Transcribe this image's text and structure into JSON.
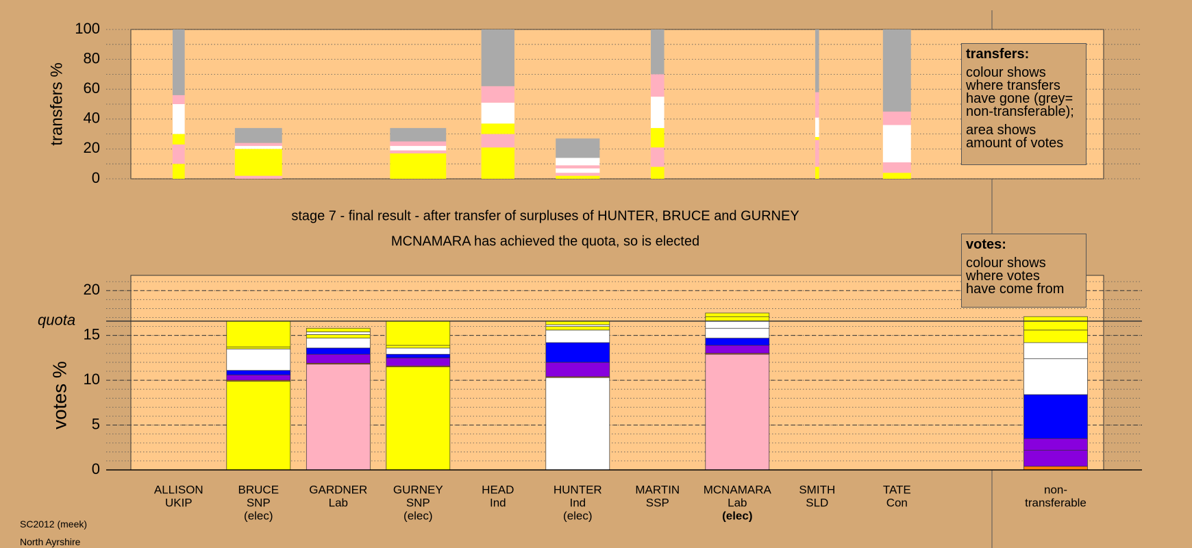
{
  "chart_data": [
    {
      "type": "stacked-bar",
      "y_label": "transfers %",
      "ylim": [
        0,
        100
      ],
      "yticks": [
        0,
        20,
        40,
        60,
        80,
        100
      ],
      "minor_tick_step": 10,
      "widths": [
        0.19,
        0.74,
        null,
        0.88,
        0.52,
        0.69,
        0.21,
        null,
        0.06,
        0.44,
        null
      ],
      "stacks": [
        [
          {
            "color": "#ffff00",
            "value": 10
          },
          {
            "color": "#ffb0c0",
            "value": 13
          },
          {
            "color": "#ffff00",
            "value": 7
          },
          {
            "color": "#ffffff",
            "value": 20
          },
          {
            "color": "#ffb0c0",
            "value": 6
          },
          {
            "color": "#aaaaaa",
            "value": 44
          }
        ],
        [
          {
            "color": "#ffb0c0",
            "value": 2
          },
          {
            "color": "#ffff00",
            "value": 18
          },
          {
            "color": "#ffffff",
            "value": 2
          },
          {
            "color": "#ffb0c0",
            "value": 2
          },
          {
            "color": "#aaaaaa",
            "value": 10
          }
        ],
        [],
        [
          {
            "color": "#ffff00",
            "value": 17
          },
          {
            "color": "#ffb0c0",
            "value": 2
          },
          {
            "color": "#ffffff",
            "value": 3
          },
          {
            "color": "#ffb0c0",
            "value": 3
          },
          {
            "color": "#aaaaaa",
            "value": 9
          }
        ],
        [
          {
            "color": "#ffff00",
            "value": 21
          },
          {
            "color": "#ffb0c0",
            "value": 9
          },
          {
            "color": "#ffff00",
            "value": 7
          },
          {
            "color": "#ffffff",
            "value": 14
          },
          {
            "color": "#ffb0c0",
            "value": 11
          },
          {
            "color": "#aaaaaa",
            "value": 38
          }
        ],
        [
          {
            "color": "#ffff00",
            "value": 2
          },
          {
            "color": "#ffb0c0",
            "value": 2
          },
          {
            "color": "#ffffff",
            "value": 3
          },
          {
            "color": "#ffb0c0",
            "value": 2
          },
          {
            "color": "#ffffff",
            "value": 5
          },
          {
            "color": "#aaaaaa",
            "value": 13
          }
        ],
        [
          {
            "color": "#ffff00",
            "value": 8
          },
          {
            "color": "#ffb0c0",
            "value": 13
          },
          {
            "color": "#ffff00",
            "value": 13
          },
          {
            "color": "#ffffff",
            "value": 21
          },
          {
            "color": "#ffb0c0",
            "value": 15
          },
          {
            "color": "#aaaaaa",
            "value": 30
          }
        ],
        [],
        [
          {
            "color": "#ffff00",
            "value": 8
          },
          {
            "color": "#ffb0c0",
            "value": 18
          },
          {
            "color": "#ffff00",
            "value": 2
          },
          {
            "color": "#ffffff",
            "value": 13
          },
          {
            "color": "#ffb0c0",
            "value": 17
          },
          {
            "color": "#aaaaaa",
            "value": 42
          }
        ],
        [
          {
            "color": "#ffff00",
            "value": 4
          },
          {
            "color": "#ffb0c0",
            "value": 7
          },
          {
            "color": "#ffffff",
            "value": 25
          },
          {
            "color": "#ffb0c0",
            "value": 9
          },
          {
            "color": "#aaaaaa",
            "value": 55
          }
        ],
        []
      ]
    },
    {
      "type": "stacked-bar",
      "title": [
        "stage 7 - final result - after transfer of surpluses of HUNTER, BRUCE and GURNEY",
        "MCNAMARA has achieved the quota, so is elected"
      ],
      "y_label": "votes %",
      "ylim": [
        0,
        21.7
      ],
      "yticks": [
        0,
        5,
        10,
        15,
        20
      ],
      "minor_tick_step": 1,
      "quota": 16.6,
      "quota_label": "quota",
      "bold_category": 7,
      "categories": [
        [
          "ALLISON",
          "UKIP"
        ],
        [
          "BRUCE",
          "SNP",
          "(elec)"
        ],
        [
          "GARDNER",
          "Lab"
        ],
        [
          "GURNEY",
          "SNP",
          "(elec)"
        ],
        [
          "HEAD",
          "Ind"
        ],
        [
          "HUNTER",
          "Ind",
          "(elec)"
        ],
        [
          "MARTIN",
          "SSP"
        ],
        [
          "MCNAMARA",
          "Lab",
          "(elec)"
        ],
        [
          "SMITH",
          "SLD"
        ],
        [
          "TATE",
          "Con"
        ],
        [
          "non-",
          "transferable"
        ]
      ],
      "stacks": [
        [],
        [
          {
            "color": "#ffff00",
            "value": 9.9
          },
          {
            "color": "#ff8000",
            "value": 0.1
          },
          {
            "color": "#8800dd",
            "value": 0.6
          },
          {
            "color": "#0000ff",
            "value": 0.5
          },
          {
            "color": "#ffffff",
            "value": 2.4
          },
          {
            "color": "#ffff00",
            "value": 0.2
          },
          {
            "color": "#ffff00",
            "value": 2.9
          }
        ],
        [
          {
            "color": "#ffb0c0",
            "value": 11.8
          },
          {
            "color": "#ff8000",
            "value": 0.1
          },
          {
            "color": "#8800dd",
            "value": 1.0
          },
          {
            "color": "#0000ff",
            "value": 0.7
          },
          {
            "color": "#ffffff",
            "value": 1.1
          },
          {
            "color": "#ffff00",
            "value": 0.4
          },
          {
            "color": "#ffffff",
            "value": 0.3
          },
          {
            "color": "#ffff00",
            "value": 0.4
          }
        ],
        [
          {
            "color": "#ffff00",
            "value": 11.5
          },
          {
            "color": "#ff8000",
            "value": 0.1
          },
          {
            "color": "#8800dd",
            "value": 0.9
          },
          {
            "color": "#0000ff",
            "value": 0.4
          },
          {
            "color": "#ffffff",
            "value": 0.7
          },
          {
            "color": "#ffff00",
            "value": 0.3
          },
          {
            "color": "#ffff00",
            "value": 2.7
          }
        ],
        [],
        [
          {
            "color": "#ffffff",
            "value": 10.3
          },
          {
            "color": "#ff8000",
            "value": 0.1
          },
          {
            "color": "#8800dd",
            "value": 1.6
          },
          {
            "color": "#0000ff",
            "value": 2.2
          },
          {
            "color": "#ffffff",
            "value": 1.4
          },
          {
            "color": "#ffff00",
            "value": 0.4
          },
          {
            "color": "#ffffff",
            "value": 0.2
          },
          {
            "color": "#ffff00",
            "value": 0.4
          }
        ],
        [],
        [
          {
            "color": "#ffb0c0",
            "value": 12.9
          },
          {
            "color": "#ff8000",
            "value": 0.1
          },
          {
            "color": "#8800dd",
            "value": 0.9
          },
          {
            "color": "#0000ff",
            "value": 0.8
          },
          {
            "color": "#ffffff",
            "value": 1.1
          },
          {
            "color": "#ffffff",
            "value": 0.8
          },
          {
            "color": "#ffff00",
            "value": 0.5
          },
          {
            "color": "#ffff00",
            "value": 0.4
          }
        ],
        [],
        [],
        [
          {
            "color": "#ff8000",
            "value": 0.4
          },
          {
            "color": "#8800dd",
            "value": 1.8
          },
          {
            "color": "#8800dd",
            "value": 1.3
          },
          {
            "color": "#0000ff",
            "value": 4.9
          },
          {
            "color": "#ffffff",
            "value": 4.0
          },
          {
            "color": "#ffffff",
            "value": 1.8
          },
          {
            "color": "#ffff00",
            "value": 1.4
          },
          {
            "color": "#ffff00",
            "value": 1.5
          }
        ]
      ]
    }
  ],
  "legend_boxes": [
    {
      "title": "transfers:",
      "paragraphs": [
        [
          "colour shows",
          "where transfers",
          "have gone (grey=",
          "non-transferable);"
        ],
        [
          "area shows",
          "amount of votes"
        ]
      ]
    },
    {
      "title": "votes:",
      "paragraphs": [
        [
          "colour shows",
          "where votes",
          "have come from"
        ]
      ]
    }
  ],
  "footer": [
    "SC2012 (meek)",
    "North Ayrshire"
  ]
}
